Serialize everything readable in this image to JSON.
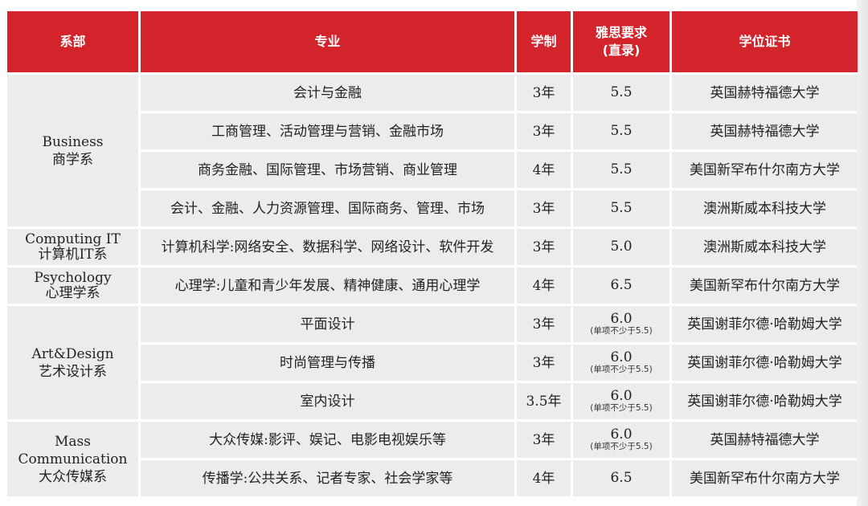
{
  "headers": {
    "department": "系部",
    "major": "专业",
    "duration": "学制",
    "ielts_line1": "雅思要求",
    "ielts_line2": "(直录)",
    "degree": "学位证书"
  },
  "departments": {
    "business": {
      "en": "Business",
      "zh": "商学系"
    },
    "computing": {
      "en": "Computing IT",
      "zh": "计算机IT系"
    },
    "psychology": {
      "en": "Psychology",
      "zh": "心理学系"
    },
    "art": {
      "en": "Art&Design",
      "zh": "艺术设计系"
    },
    "mass": {
      "en1": "Mass",
      "en2": "Communication",
      "zh": "大众传媒系"
    }
  },
  "rows": [
    {
      "major": "会计与金融",
      "duration": "3年",
      "ielts": "5.5",
      "ielts_note": "",
      "degree": "英国赫特福德大学"
    },
    {
      "major": "工商管理、活动管理与营销、金融市场",
      "duration": "3年",
      "ielts": "5.5",
      "ielts_note": "",
      "degree": "英国赫特福德大学"
    },
    {
      "major": "商务金融、国际管理、市场营销、商业管理",
      "duration": "4年",
      "ielts": "5.5",
      "ielts_note": "",
      "degree": "美国新罕布什尔南方大学"
    },
    {
      "major": "会计、金融、人力资源管理、国际商务、管理、市场",
      "duration": "3年",
      "ielts": "5.5",
      "ielts_note": "",
      "degree": "澳洲斯威本科技大学"
    },
    {
      "major": "计算机科学:网络安全、数据科学、网络设计、软件开发",
      "duration": "3年",
      "ielts": "5.0",
      "ielts_note": "",
      "degree": "澳洲斯威本科技大学"
    },
    {
      "major": "心理学:儿童和青少年发展、精神健康、通用心理学",
      "duration": "4年",
      "ielts": "6.5",
      "ielts_note": "",
      "degree": "美国新罕布什尔南方大学"
    },
    {
      "major": "平面设计",
      "duration": "3年",
      "ielts": "6.0",
      "ielts_note": "(单项不少于5.5)",
      "degree": "英国谢菲尔德·哈勒姆大学"
    },
    {
      "major": "时尚管理与传播",
      "duration": "3年",
      "ielts": "6.0",
      "ielts_note": "(单项不少于5.5)",
      "degree": "英国谢菲尔德·哈勒姆大学"
    },
    {
      "major": "室内设计",
      "duration": "3.5年",
      "ielts": "6.0",
      "ielts_note": "(单项不少于5.5)",
      "degree": "英国谢菲尔德·哈勒姆大学"
    },
    {
      "major": "大众传媒:影评、娱记、电影电视娱乐等",
      "duration": "3年",
      "ielts": "6.0",
      "ielts_note": "(单项不少于5.5)",
      "degree": "英国赫特福德大学"
    },
    {
      "major": "传播学:公共关系、记者专家、社会学家等",
      "duration": "4年",
      "ielts": "6.5",
      "ielts_note": "",
      "degree": "美国新罕布什尔南方大学"
    }
  ]
}
